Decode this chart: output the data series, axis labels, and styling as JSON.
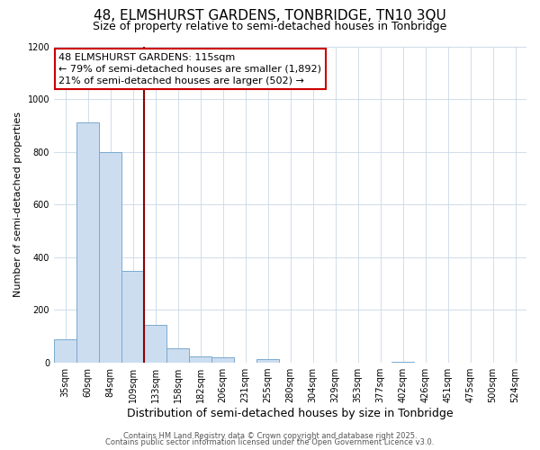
{
  "title1": "48, ELMSHURST GARDENS, TONBRIDGE, TN10 3QU",
  "title2": "Size of property relative to semi-detached houses in Tonbridge",
  "xlabel": "Distribution of semi-detached houses by size in Tonbridge",
  "ylabel": "Number of semi-detached properties",
  "bar_labels": [
    "35sqm",
    "60sqm",
    "84sqm",
    "109sqm",
    "133sqm",
    "158sqm",
    "182sqm",
    "206sqm",
    "231sqm",
    "255sqm",
    "280sqm",
    "304sqm",
    "329sqm",
    "353sqm",
    "377sqm",
    "402sqm",
    "426sqm",
    "451sqm",
    "475sqm",
    "500sqm",
    "524sqm"
  ],
  "bar_values": [
    90,
    910,
    800,
    350,
    145,
    55,
    25,
    20,
    0,
    15,
    0,
    0,
    0,
    0,
    0,
    5,
    0,
    0,
    0,
    0,
    0
  ],
  "bar_color": "#ccddf0",
  "bar_edge_color": "#7aaad0",
  "ylim": [
    0,
    1200
  ],
  "yticks": [
    0,
    200,
    400,
    600,
    800,
    1000,
    1200
  ],
  "red_line_x_label": "109sqm",
  "annotation_line1": "48 ELMSHURST GARDENS: 115sqm",
  "annotation_line2": "← 79% of semi-detached houses are smaller (1,892)",
  "annotation_line3": "21% of semi-detached houses are larger (502) →",
  "footer1": "Contains HM Land Registry data © Crown copyright and database right 2025.",
  "footer2": "Contains public sector information licensed under the Open Government Licence v3.0.",
  "bg_color": "#ffffff",
  "grid_color": "#c8d8e8",
  "title1_fontsize": 11,
  "title2_fontsize": 9,
  "xlabel_fontsize": 9,
  "ylabel_fontsize": 8,
  "tick_fontsize": 7,
  "annotation_fontsize": 8,
  "footer_fontsize": 6
}
